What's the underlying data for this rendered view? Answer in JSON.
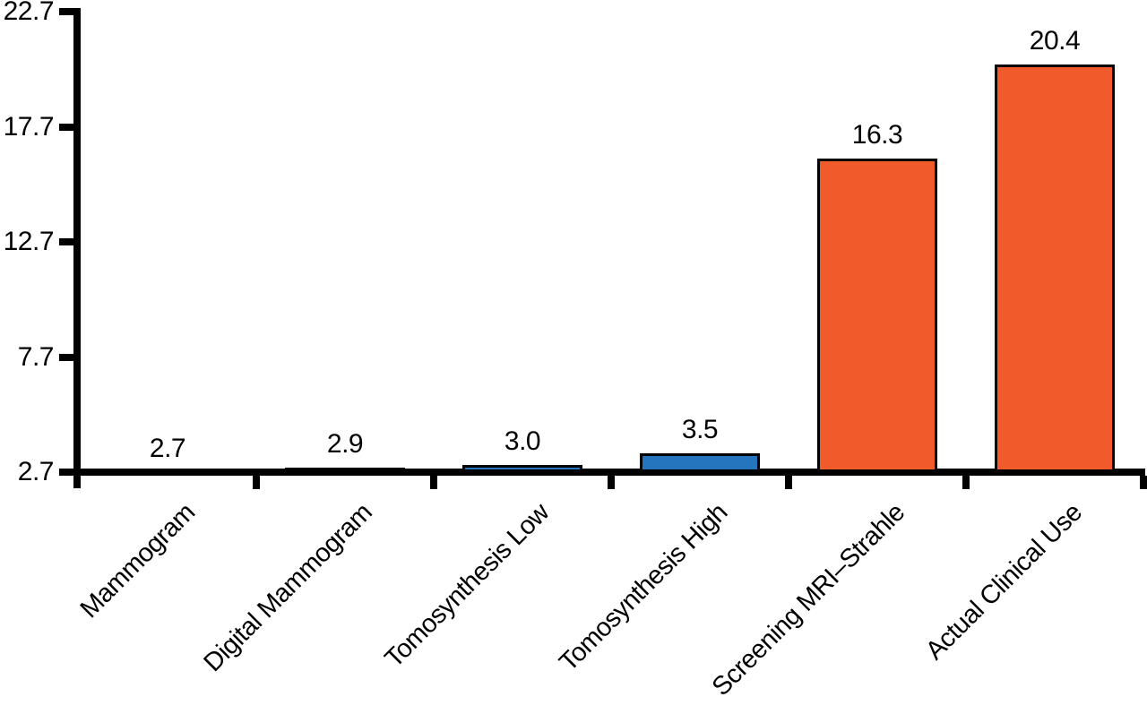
{
  "chart_data": {
    "type": "bar",
    "title": "",
    "xlabel": "",
    "ylabel": "",
    "categories": [
      "Mammogram",
      "Digital Mammogram",
      "Tomosynthesis Low",
      "Tomosynthesis High",
      "Screening MRI–Strahle",
      "Actual Clinical Use"
    ],
    "values": [
      2.7,
      2.9,
      3.0,
      3.5,
      16.3,
      20.4
    ],
    "value_labels": [
      "2.7",
      "2.9",
      "3.0",
      "3.5",
      "16.3",
      "20.4"
    ],
    "bar_colors": [
      "#2474BE",
      "#2474BE",
      "#2474BE",
      "#2474BE",
      "#F15B2B",
      "#F15B2B"
    ],
    "baseline_value": 2.7,
    "ylim": [
      2.7,
      22.7
    ],
    "yticks": [
      2.7,
      7.7,
      12.7,
      17.7,
      22.7
    ],
    "ytick_labels": [
      "2.7",
      "7.7",
      "12.7",
      "17.7",
      "22.7"
    ],
    "grid": false,
    "legend": null,
    "colors": {
      "blue": "#2474BE",
      "orange": "#F15B2B",
      "axis": "#000000",
      "background": "#FFFFFF"
    }
  }
}
